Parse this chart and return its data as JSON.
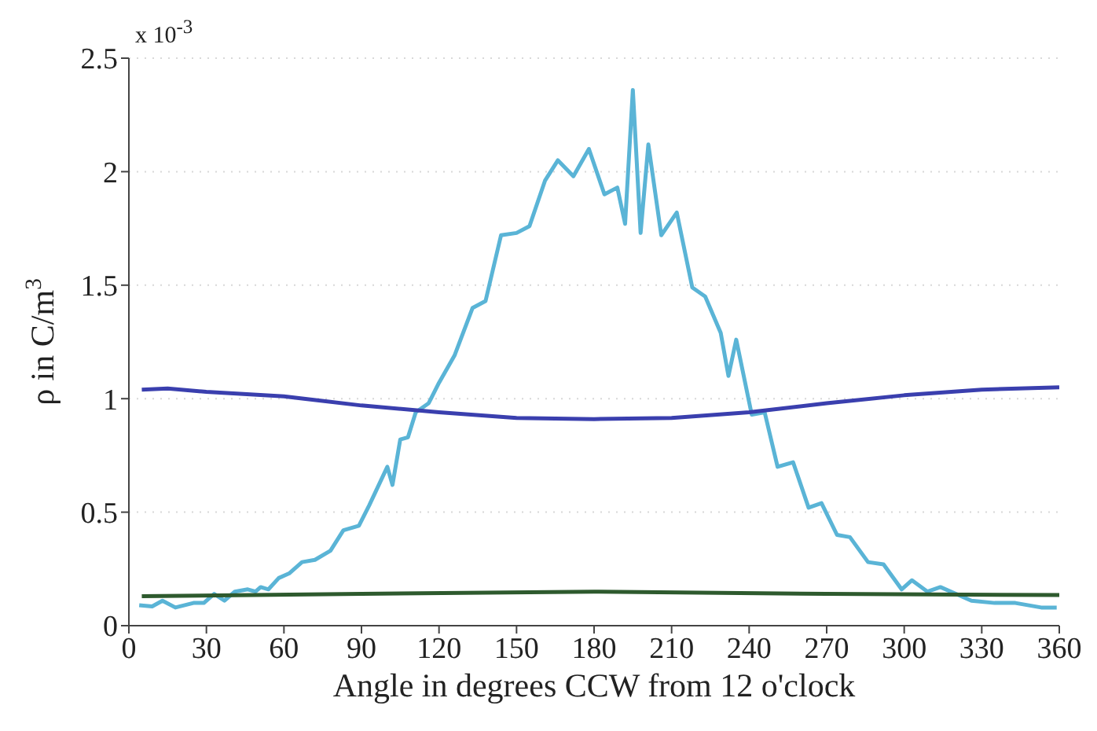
{
  "chart_data": {
    "type": "line",
    "xlabel": "Angle in degrees CCW from 12 o'clock",
    "ylabel": "ρ in C/m$^{3}$",
    "annotations": [
      "x 10$^{-3}$"
    ],
    "xlim": [
      0,
      360
    ],
    "xticks": [
      0,
      30,
      60,
      90,
      120,
      150,
      180,
      210,
      240,
      270,
      300,
      330,
      360
    ],
    "ylim": [
      0,
      2.5
    ],
    "yticks": [
      0,
      0.5,
      1,
      1.5,
      2,
      2.5
    ],
    "grid": "y",
    "marker": "none",
    "line_style": "solid",
    "series": [
      {
        "color": "#5ab4d6",
        "x": [
          4,
          9,
          13,
          18,
          25,
          29,
          33,
          37,
          41,
          46,
          49,
          51,
          54,
          58,
          62,
          67,
          72,
          78,
          83,
          89,
          93,
          100,
          102,
          105,
          108,
          111,
          116,
          120,
          126,
          133,
          138,
          144,
          150,
          155,
          161,
          166,
          172,
          178,
          184,
          189,
          192,
          195,
          198,
          201,
          206,
          212,
          218,
          223,
          229,
          232,
          235,
          241,
          246,
          251,
          257,
          263,
          268,
          274,
          279,
          286,
          292,
          299,
          303,
          309,
          314,
          320,
          326,
          335,
          343,
          353,
          359
        ],
        "values": [
          0.09,
          0.085,
          0.11,
          0.08,
          0.1,
          0.1,
          0.14,
          0.11,
          0.15,
          0.16,
          0.15,
          0.17,
          0.16,
          0.21,
          0.23,
          0.28,
          0.29,
          0.33,
          0.42,
          0.44,
          0.53,
          0.7,
          0.62,
          0.82,
          0.83,
          0.94,
          0.98,
          1.07,
          1.19,
          1.4,
          1.43,
          1.72,
          1.73,
          1.76,
          1.96,
          2.05,
          1.98,
          2.1,
          1.9,
          1.93,
          1.77,
          2.36,
          1.73,
          2.12,
          1.72,
          1.82,
          1.49,
          1.45,
          1.29,
          1.1,
          1.26,
          0.93,
          0.94,
          0.7,
          0.72,
          0.52,
          0.54,
          0.4,
          0.39,
          0.28,
          0.27,
          0.16,
          0.2,
          0.15,
          0.17,
          0.14,
          0.11,
          0.1,
          0.1,
          0.08,
          0.08
        ]
      },
      {
        "color": "#3a3fae",
        "x": [
          5,
          15,
          30,
          60,
          90,
          120,
          150,
          180,
          210,
          240,
          270,
          300,
          330,
          360
        ],
        "values": [
          1.04,
          1.045,
          1.03,
          1.01,
          0.97,
          0.94,
          0.915,
          0.91,
          0.915,
          0.94,
          0.98,
          1.015,
          1.04,
          1.05
        ]
      },
      {
        "color": "#2e5a2e",
        "x": [
          5,
          90,
          180,
          270,
          360
        ],
        "values": [
          0.13,
          0.14,
          0.15,
          0.14,
          0.135
        ]
      }
    ]
  }
}
